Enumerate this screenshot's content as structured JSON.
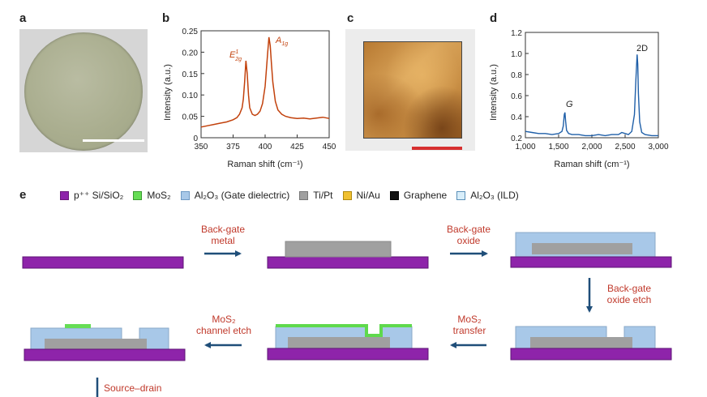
{
  "panels": {
    "a": {
      "letter": "a"
    },
    "b": {
      "letter": "b",
      "ylabel": "Intensity (a.u.)",
      "xlabel": "Raman shift (cm⁻¹)",
      "yticks": [
        "0",
        "0.05",
        "0.10",
        "0.15",
        "0.20",
        "0.25"
      ],
      "xticks": [
        "350",
        "375",
        "400",
        "425",
        "450"
      ],
      "peak_e_base": "E",
      "peak_e_sup": "1",
      "peak_e_sub": "2g",
      "peak_a_base": "A",
      "peak_a_sub": "1g"
    },
    "c": {
      "letter": "c"
    },
    "d": {
      "letter": "d",
      "ylabel": "Intensity (a.u.)",
      "xlabel": "Raman shift (cm⁻¹)",
      "yticks": [
        "0.2",
        "0.4",
        "0.6",
        "0.8",
        "1.0",
        "1.2"
      ],
      "xticks": [
        "1,000",
        "1,500",
        "2,000",
        "2,500",
        "3,000"
      ],
      "peak_g": "G",
      "peak_2d": "2D"
    },
    "e": {
      "letter": "e"
    }
  },
  "legend": [
    {
      "text": "p⁺⁺ Si/SiO₂",
      "color": "#8e24aa",
      "border": "#6a1b7a"
    },
    {
      "text": "MoS₂",
      "color": "#66dd55",
      "border": "#3a9a30"
    },
    {
      "text": "Al₂O₃ (Gate dielectric)",
      "color": "#a8c8e8",
      "border": "#6f9ac4"
    },
    {
      "text": "Ti/Pt",
      "color": "#a0a0a0",
      "border": "#777777"
    },
    {
      "text": "Ni/Au",
      "color": "#f0c030",
      "border": "#b08a10"
    },
    {
      "text": "Graphene",
      "color": "#111111",
      "border": "#000000"
    },
    {
      "text": "Al₂O₃ (ILD)",
      "color": "#d8eefa",
      "border": "#5a90b8"
    }
  ],
  "steps": {
    "s1_l1": "Back-gate",
    "s1_l2": "metal",
    "s2_l1": "Back-gate",
    "s2_l2": "oxide",
    "s3_l1": "Back-gate",
    "s3_l2": "oxide etch",
    "s4_l1": "MoS₂",
    "s4_l2": "transfer",
    "s5_l1": "MoS₂",
    "s5_l2": "channel etch",
    "s6_l1": "Source–drain"
  },
  "colors": {
    "substrate": "#8e24aa",
    "metal": "#a0a0a0",
    "oxide": "#a8c8e8",
    "mos2": "#66dd55",
    "arrow": "#1f4e79",
    "raman_b": "#c2410c",
    "raman_d": "#1f5fa8",
    "step_text": "#c0392b"
  },
  "chart_data": [
    {
      "panel": "b",
      "type": "line",
      "xlabel": "Raman shift (cm⁻¹)",
      "ylabel": "Intensity (a.u.)",
      "xlim": [
        350,
        450
      ],
      "ylim": [
        0,
        0.25
      ],
      "x": [
        350,
        355,
        360,
        365,
        370,
        375,
        378,
        380,
        382,
        383,
        384,
        385,
        386,
        387,
        388,
        390,
        392,
        394,
        396,
        398,
        400,
        401,
        402,
        403,
        404,
        405,
        406,
        408,
        410,
        413,
        416,
        420,
        425,
        430,
        435,
        440,
        445,
        450
      ],
      "y": [
        0.025,
        0.028,
        0.031,
        0.034,
        0.037,
        0.042,
        0.047,
        0.055,
        0.07,
        0.09,
        0.13,
        0.18,
        0.15,
        0.1,
        0.07,
        0.055,
        0.052,
        0.055,
        0.062,
        0.08,
        0.12,
        0.16,
        0.2,
        0.235,
        0.215,
        0.17,
        0.13,
        0.085,
        0.065,
        0.055,
        0.05,
        0.047,
        0.045,
        0.046,
        0.044,
        0.046,
        0.048,
        0.045
      ],
      "annotations": [
        "E¹₂g",
        "A₁g"
      ]
    },
    {
      "panel": "d",
      "type": "line",
      "xlabel": "Raman shift (cm⁻¹)",
      "ylabel": "Intensity (a.u.)",
      "xlim": [
        1000,
        3000
      ],
      "ylim": [
        0.2,
        1.2
      ],
      "x": [
        1000,
        1100,
        1200,
        1300,
        1400,
        1500,
        1550,
        1570,
        1585,
        1595,
        1605,
        1620,
        1650,
        1700,
        1800,
        1900,
        2000,
        2100,
        2200,
        2300,
        2400,
        2450,
        2500,
        2550,
        2600,
        2640,
        2660,
        2680,
        2690,
        2700,
        2720,
        2750,
        2800,
        2900,
        3000
      ],
      "y": [
        0.26,
        0.25,
        0.24,
        0.24,
        0.23,
        0.24,
        0.26,
        0.31,
        0.42,
        0.44,
        0.36,
        0.27,
        0.24,
        0.23,
        0.23,
        0.22,
        0.22,
        0.23,
        0.22,
        0.23,
        0.23,
        0.25,
        0.24,
        0.23,
        0.26,
        0.42,
        0.72,
        0.99,
        0.9,
        0.62,
        0.35,
        0.25,
        0.23,
        0.22,
        0.22
      ],
      "annotations": [
        "G",
        "2D"
      ]
    }
  ]
}
